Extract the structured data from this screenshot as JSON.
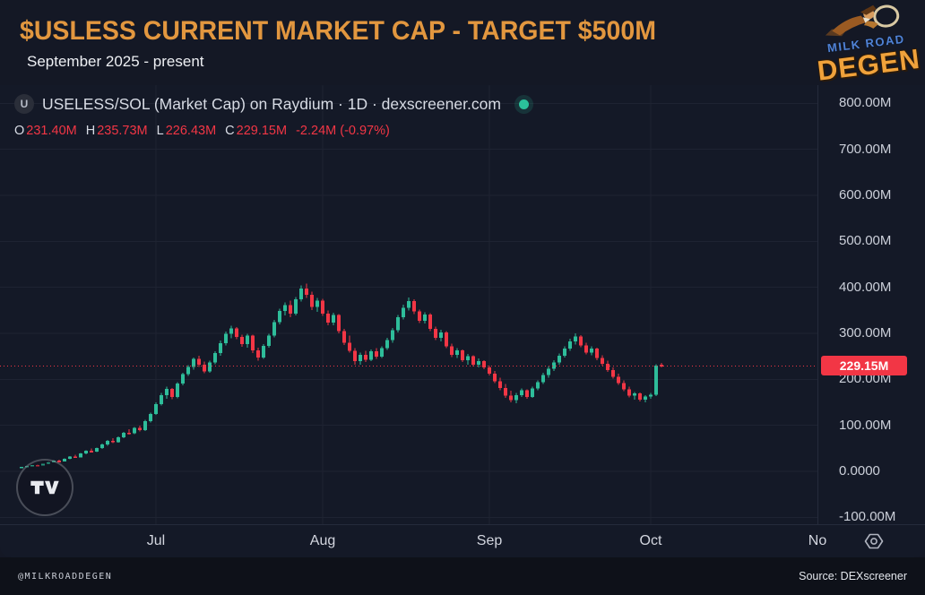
{
  "page": {
    "title": "$USLESS CURRENT MARKET CAP - TARGET $500M",
    "subtitle": "September 2025 - present",
    "footer_left": "@MILKROADDEGEN",
    "footer_right": "Source: DEXscreener"
  },
  "brand": {
    "line1": "MILK ROAD",
    "line2": "DEGEN"
  },
  "colors": {
    "title_orange": "#e2973f",
    "up_green": "#2ebd9a",
    "down_red": "#f23645",
    "price_label_bg": "#f23645",
    "status_dot_green": "#2bc19b",
    "brand_blue": "#4f82d6",
    "brand_orange": "#f0a23b",
    "grid": "#1e2332"
  },
  "chart": {
    "symbol_badge": "U",
    "symbol_title": "USELESS/SOL (Market Cap) on Raydium · 1D · dexscreener.com",
    "ohlc": {
      "o_label": "O",
      "o": "231.40M",
      "h_label": "H",
      "h": "235.73M",
      "l_label": "L",
      "l": "226.43M",
      "c_label": "C",
      "c": "229.15M",
      "change": "-2.24M (-0.97%)"
    },
    "price_label": "229.15M"
  },
  "chart_data": {
    "type": "candlestick",
    "interval": "1D",
    "unit": "USD market cap, millions",
    "ylim": [
      -115,
      840
    ],
    "grid": true,
    "last_price": 229.15,
    "y_ticks": [
      {
        "value": 800,
        "label": "800.00M"
      },
      {
        "value": 700,
        "label": "700.00M"
      },
      {
        "value": 600,
        "label": "600.00M"
      },
      {
        "value": 500,
        "label": "500.00M"
      },
      {
        "value": 400,
        "label": "400.00M"
      },
      {
        "value": 300,
        "label": "300.00M"
      },
      {
        "value": 200,
        "label": "200.00M"
      },
      {
        "value": 100,
        "label": "100.00M"
      },
      {
        "value": 0,
        "label": "0.0000"
      },
      {
        "value": -100,
        "label": "-100.00M"
      }
    ],
    "month_ticks": [
      {
        "label": "Jul",
        "index": 25
      },
      {
        "label": "Aug",
        "index": 56
      },
      {
        "label": "Sep",
        "index": 87
      },
      {
        "label": "Oct",
        "index": 117
      },
      {
        "label": "No",
        "index": 148
      }
    ],
    "candles_ohlc_millions": [
      [
        8,
        10,
        7,
        9.5
      ],
      [
        9.5,
        12,
        9,
        11.5
      ],
      [
        11.5,
        14,
        11,
        13.5
      ],
      [
        13.5,
        15,
        12,
        12.8
      ],
      [
        12.8,
        17,
        12.5,
        16.5
      ],
      [
        16.5,
        20,
        16,
        19.5
      ],
      [
        19.5,
        24,
        19,
        23
      ],
      [
        23,
        25,
        20.5,
        21.5
      ],
      [
        21.5,
        28,
        21,
        27
      ],
      [
        27,
        33,
        26,
        32
      ],
      [
        32,
        36,
        29,
        30.5
      ],
      [
        30.5,
        40,
        30,
        38.5
      ],
      [
        38.5,
        46,
        37.5,
        44.5
      ],
      [
        44.5,
        50,
        41,
        43
      ],
      [
        43,
        52,
        42,
        50.5
      ],
      [
        50.5,
        60,
        49,
        58
      ],
      [
        58,
        68,
        56,
        66
      ],
      [
        66,
        72,
        61,
        63.5
      ],
      [
        63.5,
        76,
        62,
        74
      ],
      [
        74,
        86,
        72,
        84
      ],
      [
        84,
        92,
        80,
        82.5
      ],
      [
        82.5,
        96,
        81,
        94
      ],
      [
        94,
        99,
        87,
        89.5
      ],
      [
        89.5,
        112,
        88,
        109
      ],
      [
        109,
        128,
        106,
        125
      ],
      [
        125,
        150,
        123,
        146
      ],
      [
        146,
        170,
        143,
        166
      ],
      [
        166,
        184,
        158,
        179
      ],
      [
        179,
        181,
        157,
        162
      ],
      [
        162,
        194,
        159,
        191
      ],
      [
        191,
        214,
        187,
        211
      ],
      [
        211,
        231,
        207,
        227
      ],
      [
        227,
        247,
        221,
        244
      ],
      [
        244,
        251,
        227,
        232
      ],
      [
        232,
        239,
        213,
        217
      ],
      [
        217,
        241,
        214,
        237
      ],
      [
        237,
        261,
        233,
        257
      ],
      [
        257,
        284,
        251,
        279
      ],
      [
        279,
        304,
        274,
        299
      ],
      [
        299,
        317,
        289,
        311
      ],
      [
        311,
        314,
        287,
        292
      ],
      [
        292,
        297,
        271,
        277
      ],
      [
        277,
        299,
        269,
        295
      ],
      [
        295,
        297,
        257,
        263
      ],
      [
        263,
        269,
        241,
        247
      ],
      [
        247,
        277,
        244,
        273
      ],
      [
        273,
        299,
        269,
        295
      ],
      [
        295,
        329,
        291,
        324
      ],
      [
        324,
        354,
        319,
        349
      ],
      [
        349,
        367,
        339,
        361
      ],
      [
        361,
        371,
        335,
        343
      ],
      [
        343,
        379,
        339,
        374
      ],
      [
        374,
        404,
        369,
        397
      ],
      [
        397,
        408,
        377,
        384
      ],
      [
        384,
        391,
        351,
        357
      ],
      [
        357,
        377,
        347,
        371
      ],
      [
        371,
        375,
        338,
        343
      ],
      [
        343,
        350,
        318,
        323
      ],
      [
        323,
        345,
        318,
        340
      ],
      [
        340,
        342,
        300,
        305
      ],
      [
        305,
        310,
        275,
        280
      ],
      [
        280,
        295,
        258,
        262
      ],
      [
        262,
        268,
        232,
        240
      ],
      [
        240,
        258,
        232,
        253
      ],
      [
        253,
        262,
        238,
        243
      ],
      [
        243,
        265,
        240,
        261
      ],
      [
        261,
        268,
        244,
        249
      ],
      [
        249,
        272,
        246,
        268
      ],
      [
        268,
        290,
        264,
        285
      ],
      [
        285,
        312,
        280,
        307
      ],
      [
        307,
        340,
        302,
        335
      ],
      [
        335,
        362,
        330,
        356
      ],
      [
        356,
        378,
        350,
        370
      ],
      [
        370,
        374,
        342,
        348
      ],
      [
        348,
        352,
        322,
        327
      ],
      [
        327,
        346,
        321,
        341
      ],
      [
        341,
        344,
        305,
        310
      ],
      [
        310,
        315,
        285,
        290
      ],
      [
        290,
        308,
        282,
        302
      ],
      [
        302,
        305,
        268,
        272
      ],
      [
        272,
        278,
        248,
        253
      ],
      [
        253,
        268,
        246,
        263
      ],
      [
        263,
        265,
        238,
        242
      ],
      [
        242,
        255,
        232,
        250
      ],
      [
        250,
        252,
        228,
        232
      ],
      [
        232,
        245,
        226,
        240
      ],
      [
        240,
        242,
        222,
        226
      ],
      [
        226,
        230,
        208,
        212
      ],
      [
        212,
        218,
        192,
        196
      ],
      [
        196,
        204,
        176,
        181
      ],
      [
        181,
        190,
        160,
        165
      ],
      [
        165,
        175,
        150,
        155
      ],
      [
        155,
        170,
        148,
        166
      ],
      [
        166,
        180,
        162,
        176
      ],
      [
        176,
        178,
        158,
        162
      ],
      [
        162,
        184,
        160,
        180
      ],
      [
        180,
        198,
        176,
        194
      ],
      [
        194,
        214,
        190,
        209
      ],
      [
        209,
        228,
        204,
        223
      ],
      [
        223,
        242,
        218,
        237
      ],
      [
        237,
        256,
        232,
        251
      ],
      [
        251,
        272,
        247,
        267
      ],
      [
        267,
        288,
        262,
        282
      ],
      [
        282,
        300,
        276,
        293
      ],
      [
        293,
        296,
        270,
        274
      ],
      [
        274,
        280,
        254,
        258
      ],
      [
        258,
        272,
        252,
        267
      ],
      [
        267,
        269,
        242,
        246
      ],
      [
        246,
        252,
        230,
        234
      ],
      [
        234,
        241,
        216,
        220
      ],
      [
        220,
        226,
        202,
        206
      ],
      [
        206,
        212,
        188,
        192
      ],
      [
        192,
        198,
        174,
        178
      ],
      [
        178,
        184,
        161,
        165
      ],
      [
        165,
        172,
        156,
        169
      ],
      [
        169,
        171,
        152,
        156
      ],
      [
        156,
        166,
        150,
        163
      ],
      [
        163,
        170,
        158,
        167
      ],
      [
        167,
        233,
        164,
        230
      ],
      [
        231.4,
        235.73,
        226.43,
        229.15
      ]
    ]
  }
}
